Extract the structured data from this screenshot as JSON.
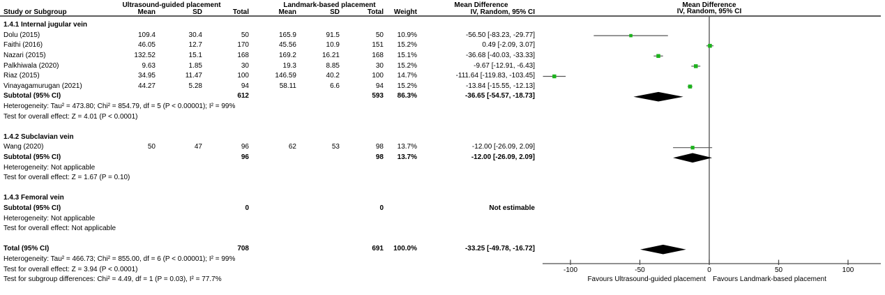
{
  "header": {
    "group1": "Ultrasound-guided placement",
    "group2": "Landmark-based placement",
    "mean_difference_col": "Mean Difference",
    "mean_difference_plot": "Mean Difference",
    "study_col": "Study or Subgroup",
    "cols": [
      "Mean",
      "SD",
      "Total",
      "Mean",
      "SD",
      "Total",
      "Weight",
      "IV, Random, 95% CI"
    ],
    "ci_model_plot": "IV, Random, 95% CI"
  },
  "chart_data": {
    "type": "forest",
    "effect_measure": "Mean Difference",
    "model": "IV, Random, 95% CI",
    "axis": {
      "ticks": [
        -100,
        -50,
        0,
        50,
        100
      ],
      "xmin": -120,
      "xmax": 124,
      "zero_line": 0,
      "favours_left": "Favours Ultrasound-guided placement",
      "favours_right": "Favours Landmark-based placement"
    },
    "colors": {
      "marker": "#1DB21D",
      "ci_line": "#555555",
      "diamond": "#000000",
      "axis": "#4D4D4D",
      "separator": "#262626"
    },
    "groups": [
      {
        "label": "1.4.1 Internal jugular vein",
        "studies": [
          {
            "name": "Dolu (2015)",
            "mean1": "109.4",
            "sd1": "30.4",
            "total1": "50",
            "mean2": "165.9",
            "sd2": "91.5",
            "total2": "50",
            "weight": "10.9%",
            "weight_value": 10.9,
            "ci_text": "-56.50 [-83.23, -29.77]",
            "est": -56.5,
            "lo": -83.23,
            "hi": -29.77
          },
          {
            "name": "Faithi (2016)",
            "mean1": "46.05",
            "sd1": "12.7",
            "total1": "170",
            "mean2": "45.56",
            "sd2": "10.9",
            "total2": "151",
            "weight": "15.2%",
            "weight_value": 15.2,
            "ci_text": "0.49 [-2.09, 3.07]",
            "est": 0.49,
            "lo": -2.09,
            "hi": 3.07
          },
          {
            "name": "Nazari (2015)",
            "mean1": "132.52",
            "sd1": "15.1",
            "total1": "168",
            "mean2": "169.2",
            "sd2": "16.21",
            "total2": "168",
            "weight": "15.1%",
            "weight_value": 15.1,
            "ci_text": "-36.68 [-40.03, -33.33]",
            "est": -36.68,
            "lo": -40.03,
            "hi": -33.33
          },
          {
            "name": "Palkhiwala (2020)",
            "mean1": "9.63",
            "sd1": "1.85",
            "total1": "30",
            "mean2": "19.3",
            "sd2": "8.85",
            "total2": "30",
            "weight": "15.2%",
            "weight_value": 15.2,
            "ci_text": "-9.67 [-12.91, -6.43]",
            "est": -9.67,
            "lo": -12.91,
            "hi": -6.43
          },
          {
            "name": "Riaz (2015)",
            "mean1": "34.95",
            "sd1": "11.47",
            "total1": "100",
            "mean2": "146.59",
            "sd2": "40.2",
            "total2": "100",
            "weight": "14.7%",
            "weight_value": 14.7,
            "ci_text": "-111.64 [-119.83, -103.45]",
            "est": -111.64,
            "lo": -119.83,
            "hi": -103.45
          },
          {
            "name": "Vinayagamurugan (2021)",
            "mean1": "44.27",
            "sd1": "5.28",
            "total1": "94",
            "mean2": "58.11",
            "sd2": "6.6",
            "total2": "94",
            "weight": "15.2%",
            "weight_value": 15.2,
            "ci_text": "-13.84 [-15.55, -12.13]",
            "est": -13.84,
            "lo": -15.55,
            "hi": -12.13
          }
        ],
        "subtotal": {
          "label": "Subtotal (95% CI)",
          "total1": "612",
          "total2": "593",
          "weight": "86.3%",
          "ci_text": "-36.65 [-54.57, -18.73]",
          "est": -36.65,
          "lo": -54.57,
          "hi": -18.73
        },
        "heterogeneity": "Heterogeneity: Tau² = 473.80; Chi² = 854.79, df = 5 (P < 0.00001); I² = 99%",
        "overall_effect": "Test for overall effect: Z = 4.01 (P < 0.0001)"
      },
      {
        "label": "1.4.2 Subclavian vein",
        "studies": [
          {
            "name": "Wang (2020)",
            "mean1": "50",
            "sd1": "47",
            "total1": "96",
            "mean2": "62",
            "sd2": "53",
            "total2": "98",
            "weight": "13.7%",
            "weight_value": 13.7,
            "ci_text": "-12.00 [-26.09, 2.09]",
            "est": -12.0,
            "lo": -26.09,
            "hi": 2.09
          }
        ],
        "subtotal": {
          "label": "Subtotal (95% CI)",
          "total1": "96",
          "total2": "98",
          "weight": "13.7%",
          "ci_text": "-12.00 [-26.09, 2.09]",
          "est": -12.0,
          "lo": -26.09,
          "hi": 2.09
        },
        "heterogeneity": "Heterogeneity: Not applicable",
        "overall_effect": "Test for overall effect: Z = 1.67 (P = 0.10)"
      },
      {
        "label": "1.4.3 Femoral vein",
        "studies": [],
        "subtotal": {
          "label": "Subtotal (95% CI)",
          "total1": "0",
          "total2": "0",
          "weight": "",
          "ci_text": "Not estimable",
          "est": null,
          "lo": null,
          "hi": null
        },
        "heterogeneity": "Heterogeneity: Not applicable",
        "overall_effect": "Test for overall effect: Not applicable"
      }
    ],
    "total": {
      "label": "Total (95% CI)",
      "total1": "708",
      "total2": "691",
      "weight": "100.0%",
      "ci_text": "-33.25 [-49.78, -16.72]",
      "est": -33.25,
      "lo": -49.78,
      "hi": -16.72
    },
    "total_footnotes": [
      "Heterogeneity: Tau² = 466.73; Chi² = 855.00, df = 6 (P < 0.00001); I² = 99%",
      "Test for overall effect: Z = 3.94 (P < 0.0001)",
      "Test for subgroup differences: Chi² = 4.49, df = 1 (P = 0.03), I² = 77.7%"
    ]
  }
}
